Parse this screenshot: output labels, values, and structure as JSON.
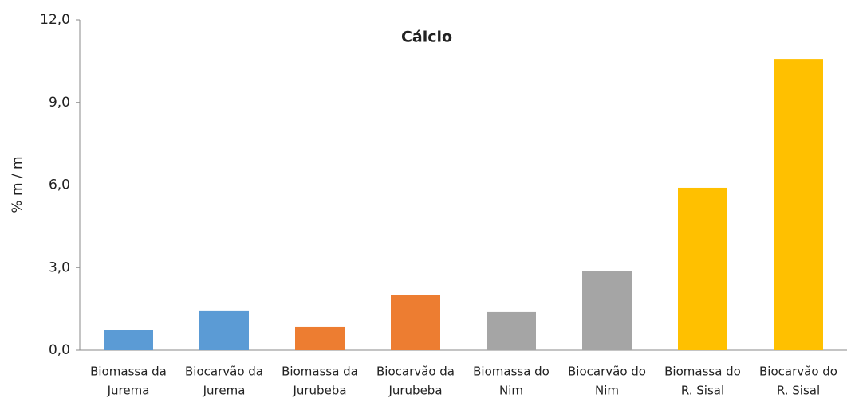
{
  "chart_data": {
    "type": "bar",
    "title": "Cálcio",
    "y_label": "% m / m",
    "categories": [
      [
        "Biomassa da",
        "Jurema"
      ],
      [
        "Biocarvão da",
        "Jurema"
      ],
      [
        "Biomassa da",
        "Jurubeba"
      ],
      [
        "Biocarvão da",
        "Jurubeba"
      ],
      [
        "Biomassa do",
        "Nim"
      ],
      [
        "Biocarvão do",
        "Nim"
      ],
      [
        "Biomassa do",
        "R. Sisal"
      ],
      [
        "Biocarvão do",
        "R. Sisal"
      ]
    ],
    "values": [
      0.75,
      1.42,
      0.84,
      2.02,
      1.39,
      2.89,
      5.9,
      10.58
    ],
    "colors": [
      "#5b9bd5",
      "#5b9bd5",
      "#ed7d31",
      "#ed7d31",
      "#a5a5a5",
      "#a5a5a5",
      "#ffc000",
      "#ffc000"
    ],
    "ylim": [
      0,
      12
    ],
    "yticks": [
      {
        "value": 0,
        "label": "0,0"
      },
      {
        "value": 3,
        "label": "3,0"
      },
      {
        "value": 6,
        "label": "6,0"
      },
      {
        "value": 9,
        "label": "9,0"
      },
      {
        "value": 12,
        "label": "12,0"
      }
    ],
    "grid": false
  }
}
